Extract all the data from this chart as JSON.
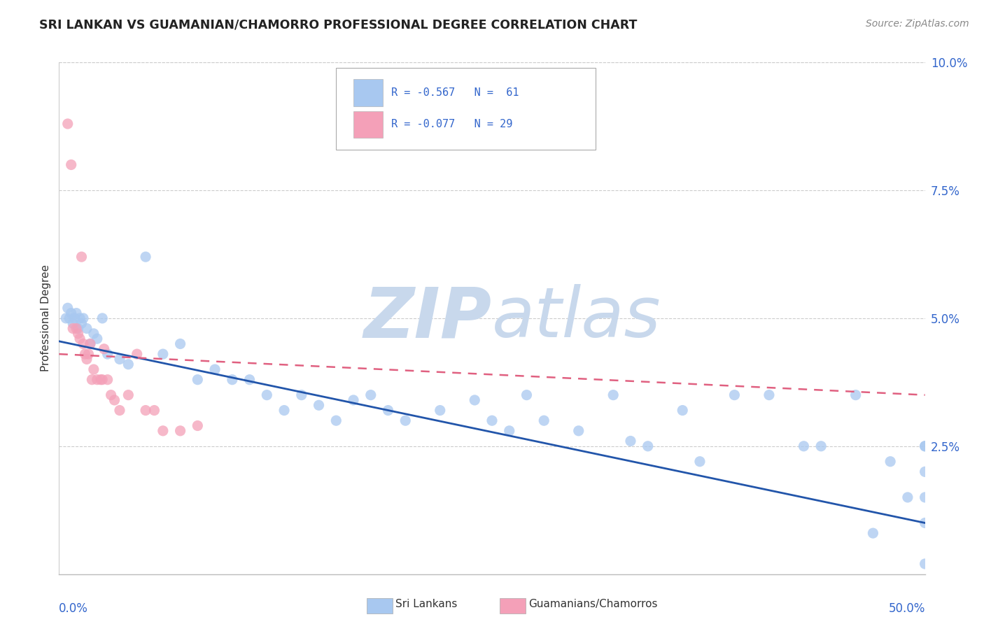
{
  "title": "SRI LANKAN VS GUAMANIAN/CHAMORRO PROFESSIONAL DEGREE CORRELATION CHART",
  "source_text": "Source: ZipAtlas.com",
  "ylabel": "Professional Degree",
  "xlim": [
    0,
    50
  ],
  "ylim": [
    0,
    10
  ],
  "color_sri": "#a8c8f0",
  "color_gua": "#f4a0b8",
  "color_sri_line": "#2255aa",
  "color_gua_line": "#e06080",
  "color_text_blue": "#3366cc",
  "watermark_zip": "ZIP",
  "watermark_atlas": "atlas",
  "watermark_color": "#dce8f5",
  "sri_x": [
    0.4,
    0.5,
    0.6,
    0.7,
    0.8,
    0.9,
    1.0,
    1.1,
    1.2,
    1.3,
    1.4,
    1.6,
    1.8,
    2.0,
    2.2,
    2.5,
    2.8,
    3.5,
    4.0,
    5.0,
    6.0,
    7.0,
    8.0,
    9.0,
    10.0,
    11.0,
    12.0,
    13.0,
    14.0,
    15.0,
    16.0,
    17.0,
    18.0,
    19.0,
    20.0,
    22.0,
    24.0,
    25.0,
    26.0,
    27.0,
    28.0,
    30.0,
    32.0,
    33.0,
    34.0,
    36.0,
    37.0,
    39.0,
    41.0,
    43.0,
    44.0,
    46.0,
    47.0,
    48.0,
    49.0,
    50.0,
    50.0,
    50.0,
    50.0,
    50.0,
    50.0
  ],
  "sri_y": [
    5.0,
    5.2,
    5.0,
    5.1,
    4.9,
    5.0,
    5.1,
    4.8,
    5.0,
    4.9,
    5.0,
    4.8,
    4.5,
    4.7,
    4.6,
    5.0,
    4.3,
    4.2,
    4.1,
    6.2,
    4.3,
    4.5,
    3.8,
    4.0,
    3.8,
    3.8,
    3.5,
    3.2,
    3.5,
    3.3,
    3.0,
    3.4,
    3.5,
    3.2,
    3.0,
    3.2,
    3.4,
    3.0,
    2.8,
    3.5,
    3.0,
    2.8,
    3.5,
    2.6,
    2.5,
    3.2,
    2.2,
    3.5,
    3.5,
    2.5,
    2.5,
    3.5,
    0.8,
    2.2,
    1.5,
    2.5,
    2.5,
    2.0,
    1.5,
    1.0,
    0.2
  ],
  "gua_x": [
    0.5,
    0.7,
    0.8,
    1.0,
    1.1,
    1.2,
    1.3,
    1.4,
    1.5,
    1.6,
    1.7,
    1.8,
    1.9,
    2.0,
    2.2,
    2.4,
    2.5,
    2.6,
    2.8,
    3.0,
    3.2,
    3.5,
    4.0,
    4.5,
    5.0,
    5.5,
    6.0,
    7.0,
    8.0
  ],
  "gua_y": [
    8.8,
    8.0,
    4.8,
    4.8,
    4.7,
    4.6,
    6.2,
    4.5,
    4.3,
    4.2,
    4.3,
    4.5,
    3.8,
    4.0,
    3.8,
    3.8,
    3.8,
    4.4,
    3.8,
    3.5,
    3.4,
    3.2,
    3.5,
    4.3,
    3.2,
    3.2,
    2.8,
    2.8,
    2.9
  ],
  "sri_line_x0": 0,
  "sri_line_y0": 4.55,
  "sri_line_x1": 50,
  "sri_line_y1": 1.0,
  "gua_line_x0": 0,
  "gua_line_y0": 4.3,
  "gua_line_x1": 50,
  "gua_line_y1": 3.5
}
